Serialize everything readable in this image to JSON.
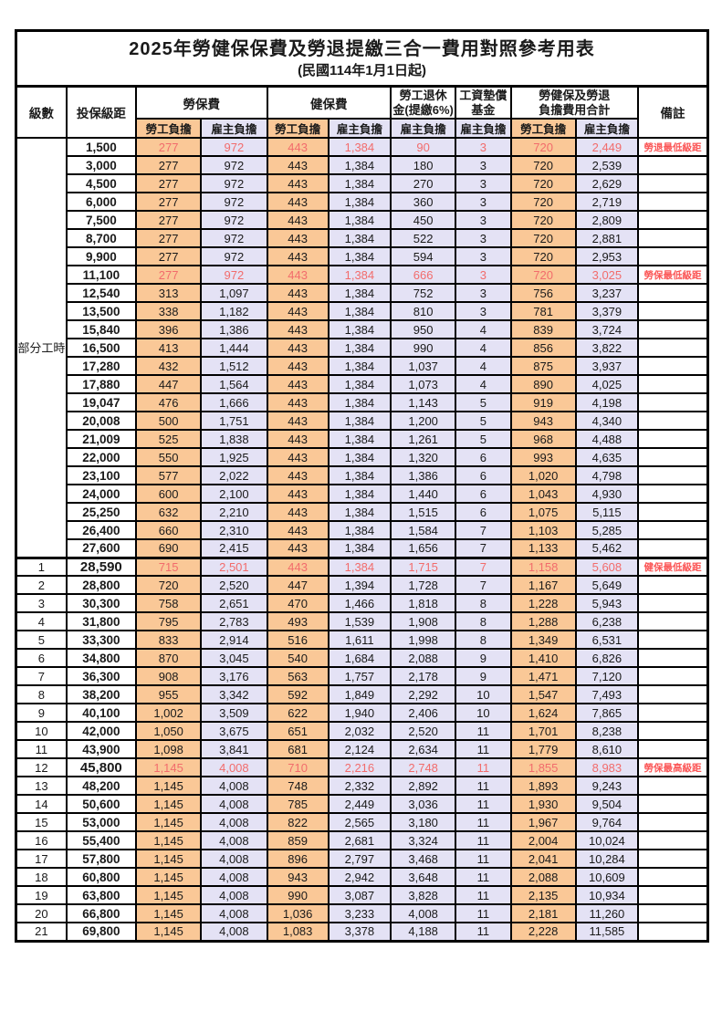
{
  "title": "2025年勞健保保費及勞退提繳三合一費用對照參考用表",
  "subtitle": "(民國114年1月1日起)",
  "header": {
    "level": "級數",
    "bracket": "投保級距",
    "labor_insurance": "勞保費",
    "health_insurance": "健保費",
    "pension_line1": "勞工退休",
    "pension_line2": "金(提繳6%)",
    "wage_fund_line1": "工資墊償",
    "wage_fund_line2": "基金",
    "total_line1": "勞健保及勞退",
    "total_line2": "負擔費用合計",
    "remark": "備註",
    "employee": "勞工負擔",
    "employer": "雇主負擔"
  },
  "part_time": {
    "label": "部分工時",
    "row_span": 23
  },
  "colors": {
    "employee_bg": "#FAC897",
    "employer_bg": "#E4E2F5",
    "red_value": "#F26C6C",
    "red_remark": "#FB5555",
    "border": "#000000"
  },
  "rows": [
    {
      "level": "",
      "bracket": "1,500",
      "fees": [
        "277",
        "972",
        "443",
        "1,384",
        "90",
        "3",
        "720",
        "2,449"
      ],
      "remark": "勞退最低級距",
      "red": true
    },
    {
      "level": "",
      "bracket": "3,000",
      "fees": [
        "277",
        "972",
        "443",
        "1,384",
        "180",
        "3",
        "720",
        "2,539"
      ],
      "remark": ""
    },
    {
      "level": "",
      "bracket": "4,500",
      "fees": [
        "277",
        "972",
        "443",
        "1,384",
        "270",
        "3",
        "720",
        "2,629"
      ],
      "remark": ""
    },
    {
      "level": "",
      "bracket": "6,000",
      "fees": [
        "277",
        "972",
        "443",
        "1,384",
        "360",
        "3",
        "720",
        "2,719"
      ],
      "remark": ""
    },
    {
      "level": "",
      "bracket": "7,500",
      "fees": [
        "277",
        "972",
        "443",
        "1,384",
        "450",
        "3",
        "720",
        "2,809"
      ],
      "remark": ""
    },
    {
      "level": "",
      "bracket": "8,700",
      "fees": [
        "277",
        "972",
        "443",
        "1,384",
        "522",
        "3",
        "720",
        "2,881"
      ],
      "remark": ""
    },
    {
      "level": "",
      "bracket": "9,900",
      "fees": [
        "277",
        "972",
        "443",
        "1,384",
        "594",
        "3",
        "720",
        "2,953"
      ],
      "remark": ""
    },
    {
      "level": "",
      "bracket": "11,100",
      "fees": [
        "277",
        "972",
        "443",
        "1,384",
        "666",
        "3",
        "720",
        "3,025"
      ],
      "remark": "勞保最低級距",
      "red": true
    },
    {
      "level": "",
      "bracket": "12,540",
      "fees": [
        "313",
        "1,097",
        "443",
        "1,384",
        "752",
        "3",
        "756",
        "3,237"
      ],
      "remark": ""
    },
    {
      "level": "",
      "bracket": "13,500",
      "fees": [
        "338",
        "1,182",
        "443",
        "1,384",
        "810",
        "3",
        "781",
        "3,379"
      ],
      "remark": ""
    },
    {
      "level": "",
      "bracket": "15,840",
      "fees": [
        "396",
        "1,386",
        "443",
        "1,384",
        "950",
        "4",
        "839",
        "3,724"
      ],
      "remark": ""
    },
    {
      "level": "",
      "bracket": "16,500",
      "fees": [
        "413",
        "1,444",
        "443",
        "1,384",
        "990",
        "4",
        "856",
        "3,822"
      ],
      "remark": ""
    },
    {
      "level": "",
      "bracket": "17,280",
      "fees": [
        "432",
        "1,512",
        "443",
        "1,384",
        "1,037",
        "4",
        "875",
        "3,937"
      ],
      "remark": ""
    },
    {
      "level": "",
      "bracket": "17,880",
      "fees": [
        "447",
        "1,564",
        "443",
        "1,384",
        "1,073",
        "4",
        "890",
        "4,025"
      ],
      "remark": ""
    },
    {
      "level": "",
      "bracket": "19,047",
      "fees": [
        "476",
        "1,666",
        "443",
        "1,384",
        "1,143",
        "5",
        "919",
        "4,198"
      ],
      "remark": ""
    },
    {
      "level": "",
      "bracket": "20,008",
      "fees": [
        "500",
        "1,751",
        "443",
        "1,384",
        "1,200",
        "5",
        "943",
        "4,340"
      ],
      "remark": ""
    },
    {
      "level": "",
      "bracket": "21,009",
      "fees": [
        "525",
        "1,838",
        "443",
        "1,384",
        "1,261",
        "5",
        "968",
        "4,488"
      ],
      "remark": ""
    },
    {
      "level": "",
      "bracket": "22,000",
      "fees": [
        "550",
        "1,925",
        "443",
        "1,384",
        "1,320",
        "6",
        "993",
        "4,635"
      ],
      "remark": ""
    },
    {
      "level": "",
      "bracket": "23,100",
      "fees": [
        "577",
        "2,022",
        "443",
        "1,384",
        "1,386",
        "6",
        "1,020",
        "4,798"
      ],
      "remark": ""
    },
    {
      "level": "",
      "bracket": "24,000",
      "fees": [
        "600",
        "2,100",
        "443",
        "1,384",
        "1,440",
        "6",
        "1,043",
        "4,930"
      ],
      "remark": ""
    },
    {
      "level": "",
      "bracket": "25,250",
      "fees": [
        "632",
        "2,210",
        "443",
        "1,384",
        "1,515",
        "6",
        "1,075",
        "5,115"
      ],
      "remark": ""
    },
    {
      "level": "",
      "bracket": "26,400",
      "fees": [
        "660",
        "2,310",
        "443",
        "1,384",
        "1,584",
        "7",
        "1,103",
        "5,285"
      ],
      "remark": ""
    },
    {
      "level": "",
      "bracket": "27,600",
      "fees": [
        "690",
        "2,415",
        "443",
        "1,384",
        "1,656",
        "7",
        "1,133",
        "5,462"
      ],
      "remark": ""
    },
    {
      "level": "1",
      "bracket": "28,590",
      "fees": [
        "715",
        "2,501",
        "443",
        "1,384",
        "1,715",
        "7",
        "1,158",
        "5,608"
      ],
      "remark": "健保最低級距",
      "red": true,
      "big": true,
      "thick_top": true
    },
    {
      "level": "2",
      "bracket": "28,800",
      "fees": [
        "720",
        "2,520",
        "447",
        "1,394",
        "1,728",
        "7",
        "1,167",
        "5,649"
      ],
      "remark": ""
    },
    {
      "level": "3",
      "bracket": "30,300",
      "fees": [
        "758",
        "2,651",
        "470",
        "1,466",
        "1,818",
        "8",
        "1,228",
        "5,943"
      ],
      "remark": ""
    },
    {
      "level": "4",
      "bracket": "31,800",
      "fees": [
        "795",
        "2,783",
        "493",
        "1,539",
        "1,908",
        "8",
        "1,288",
        "6,238"
      ],
      "remark": ""
    },
    {
      "level": "5",
      "bracket": "33,300",
      "fees": [
        "833",
        "2,914",
        "516",
        "1,611",
        "1,998",
        "8",
        "1,349",
        "6,531"
      ],
      "remark": ""
    },
    {
      "level": "6",
      "bracket": "34,800",
      "fees": [
        "870",
        "3,045",
        "540",
        "1,684",
        "2,088",
        "9",
        "1,410",
        "6,826"
      ],
      "remark": ""
    },
    {
      "level": "7",
      "bracket": "36,300",
      "fees": [
        "908",
        "3,176",
        "563",
        "1,757",
        "2,178",
        "9",
        "1,471",
        "7,120"
      ],
      "remark": ""
    },
    {
      "level": "8",
      "bracket": "38,200",
      "fees": [
        "955",
        "3,342",
        "592",
        "1,849",
        "2,292",
        "10",
        "1,547",
        "7,493"
      ],
      "remark": ""
    },
    {
      "level": "9",
      "bracket": "40,100",
      "fees": [
        "1,002",
        "3,509",
        "622",
        "1,940",
        "2,406",
        "10",
        "1,624",
        "7,865"
      ],
      "remark": ""
    },
    {
      "level": "10",
      "bracket": "42,000",
      "fees": [
        "1,050",
        "3,675",
        "651",
        "2,032",
        "2,520",
        "11",
        "1,701",
        "8,238"
      ],
      "remark": ""
    },
    {
      "level": "11",
      "bracket": "43,900",
      "fees": [
        "1,098",
        "3,841",
        "681",
        "2,124",
        "2,634",
        "11",
        "1,779",
        "8,610"
      ],
      "remark": ""
    },
    {
      "level": "12",
      "bracket": "45,800",
      "fees": [
        "1,145",
        "4,008",
        "710",
        "2,216",
        "2,748",
        "11",
        "1,855",
        "8,983"
      ],
      "remark": "勞保最高級距",
      "red": true,
      "big": true
    },
    {
      "level": "13",
      "bracket": "48,200",
      "fees": [
        "1,145",
        "4,008",
        "748",
        "2,332",
        "2,892",
        "11",
        "1,893",
        "9,243"
      ],
      "remark": ""
    },
    {
      "level": "14",
      "bracket": "50,600",
      "fees": [
        "1,145",
        "4,008",
        "785",
        "2,449",
        "3,036",
        "11",
        "1,930",
        "9,504"
      ],
      "remark": ""
    },
    {
      "level": "15",
      "bracket": "53,000",
      "fees": [
        "1,145",
        "4,008",
        "822",
        "2,565",
        "3,180",
        "11",
        "1,967",
        "9,764"
      ],
      "remark": ""
    },
    {
      "level": "16",
      "bracket": "55,400",
      "fees": [
        "1,145",
        "4,008",
        "859",
        "2,681",
        "3,324",
        "11",
        "2,004",
        "10,024"
      ],
      "remark": ""
    },
    {
      "level": "17",
      "bracket": "57,800",
      "fees": [
        "1,145",
        "4,008",
        "896",
        "2,797",
        "3,468",
        "11",
        "2,041",
        "10,284"
      ],
      "remark": ""
    },
    {
      "level": "18",
      "bracket": "60,800",
      "fees": [
        "1,145",
        "4,008",
        "943",
        "2,942",
        "3,648",
        "11",
        "2,088",
        "10,609"
      ],
      "remark": ""
    },
    {
      "level": "19",
      "bracket": "63,800",
      "fees": [
        "1,145",
        "4,008",
        "990",
        "3,087",
        "3,828",
        "11",
        "2,135",
        "10,934"
      ],
      "remark": ""
    },
    {
      "level": "20",
      "bracket": "66,800",
      "fees": [
        "1,145",
        "4,008",
        "1,036",
        "3,233",
        "4,008",
        "11",
        "2,181",
        "11,260"
      ],
      "remark": ""
    },
    {
      "level": "21",
      "bracket": "69,800",
      "fees": [
        "1,145",
        "4,008",
        "1,083",
        "3,378",
        "4,188",
        "11",
        "2,228",
        "11,585"
      ],
      "remark": ""
    }
  ]
}
